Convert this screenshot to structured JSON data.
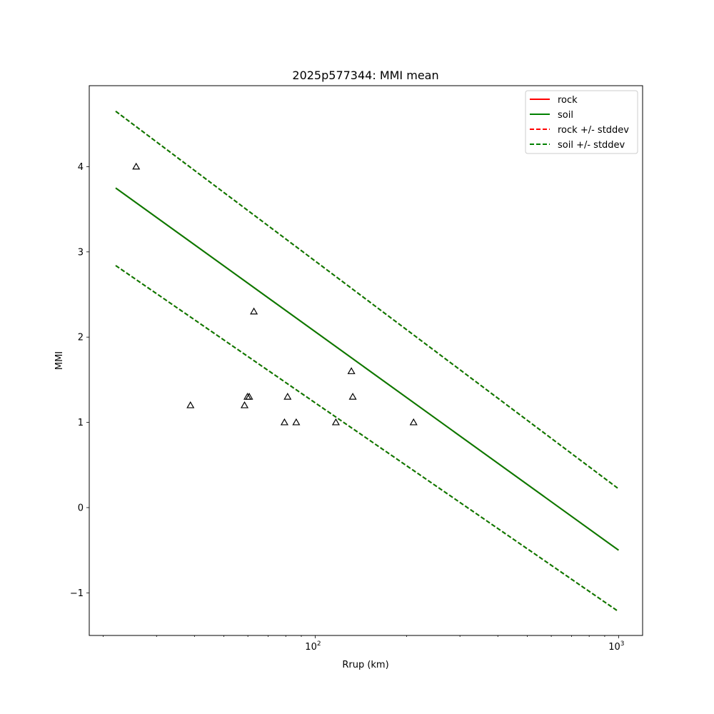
{
  "chart_data": {
    "type": "line",
    "title": "2025p577344: MMI mean",
    "xlabel": "Rrup (km)",
    "ylabel": "MMI",
    "xscale": "log",
    "xlim": [
      18,
      1200
    ],
    "ylim": [
      -1.5,
      4.95
    ],
    "xticks": [
      {
        "value": 100,
        "base": "10",
        "exp": "2"
      },
      {
        "value": 1000,
        "base": "10",
        "exp": "3"
      }
    ],
    "yticks": [
      -1,
      0,
      1,
      2,
      3,
      4
    ],
    "legend_position": "upper right",
    "series": [
      {
        "name": "rock",
        "color": "#ff0000",
        "style": "solid",
        "x": [
          22,
          1000
        ],
        "y": [
          3.75,
          -0.5
        ]
      },
      {
        "name": "soil",
        "color": "#008000",
        "style": "solid",
        "x": [
          22,
          1000
        ],
        "y": [
          3.75,
          -0.5
        ]
      },
      {
        "name": "rock +/- stddev",
        "color": "#ff0000",
        "style": "dashed",
        "upper": {
          "x": [
            22,
            1000
          ],
          "y": [
            4.65,
            0.22
          ]
        },
        "lower": {
          "x": [
            22,
            1000
          ],
          "y": [
            2.84,
            -1.22
          ]
        }
      },
      {
        "name": "soil +/- stddev",
        "color": "#008000",
        "style": "dashed",
        "upper": {
          "x": [
            22,
            1000
          ],
          "y": [
            4.65,
            0.22
          ]
        },
        "lower": {
          "x": [
            22,
            1000
          ],
          "y": [
            2.84,
            -1.22
          ]
        }
      }
    ],
    "observations": {
      "marker": "triangle-open",
      "color": "#000000",
      "points": [
        {
          "x": 25.7,
          "y": 4.0
        },
        {
          "x": 38.8,
          "y": 1.2
        },
        {
          "x": 58.5,
          "y": 1.2
        },
        {
          "x": 59.8,
          "y": 1.3
        },
        {
          "x": 60.6,
          "y": 1.3
        },
        {
          "x": 62.8,
          "y": 2.3
        },
        {
          "x": 79.2,
          "y": 1.0
        },
        {
          "x": 81.1,
          "y": 1.3
        },
        {
          "x": 86.6,
          "y": 1.0
        },
        {
          "x": 117.0,
          "y": 1.0
        },
        {
          "x": 131.6,
          "y": 1.6
        },
        {
          "x": 133.0,
          "y": 1.3
        },
        {
          "x": 211.0,
          "y": 1.0
        }
      ]
    }
  }
}
